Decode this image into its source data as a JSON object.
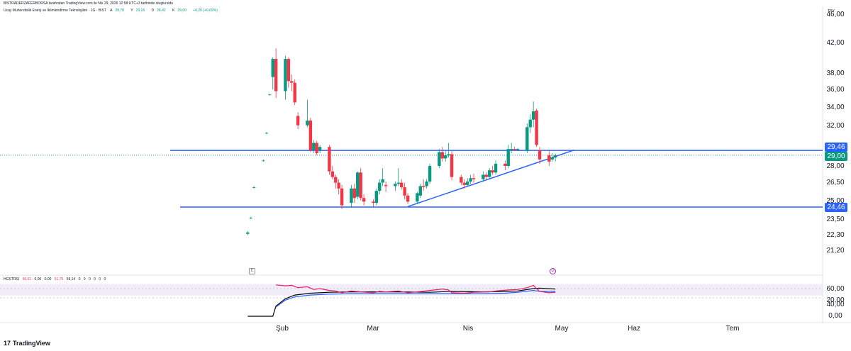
{
  "header": {
    "publish_text": "BISTRADERZAFERBORSA tarafından TradingView.com ile Nis 29, 2026 12:58 UTC+3 tarihinde oluşturuldu",
    "symbol_title": "Ucay Muhendislik Enerji ve Iklimlendirme Teknolojileri · 1G · BIST",
    "ohlc": [
      {
        "label": "A",
        "value": "28,78"
      },
      {
        "label": "Y",
        "value": "29,16"
      },
      {
        "label": "D",
        "value": "28,42"
      },
      {
        "label": "K",
        "value": "29,00"
      },
      {
        "label": "",
        "value": "+0,20 (+0,69%)"
      }
    ],
    "currency": "TRY"
  },
  "indicator": {
    "name": "HGSTRSI",
    "values": [
      "56,61",
      "0,00",
      "0,00",
      "51,75",
      "59,14",
      "0",
      "0",
      "0",
      "0",
      "0",
      "0"
    ]
  },
  "markers": {
    "e_label": "E",
    "d_label": "D"
  },
  "logo": {
    "mark": "17",
    "text": "TradingView"
  },
  "price_axis": {
    "labels": [
      "46,00",
      "42,00",
      "38,00",
      "36,00",
      "34,00",
      "32,00",
      "28,00",
      "26,50",
      "25,00",
      "23,50",
      "22,30",
      "21,20"
    ],
    "badges": [
      {
        "text": "29,46",
        "color": "#2962ff"
      },
      {
        "text": "29,00",
        "color": "#089981"
      },
      {
        "text": "24,46",
        "color": "#2962ff"
      }
    ]
  },
  "rsi_axis": {
    "labels": [
      "60,00",
      "40,00",
      "20,00",
      "0,00"
    ]
  },
  "time_axis": {
    "labels": [
      "Şub",
      "Mar",
      "Nis",
      "May",
      "Haz",
      "Tem"
    ]
  },
  "chart_data": {
    "type": "candlestick",
    "price_scale": "log",
    "ylim": [
      21.2,
      46.0
    ],
    "up_color": "#089981",
    "down_color": "#f23645",
    "horizontal_lines": [
      {
        "value": 29.46,
        "color": "#2962ff"
      },
      {
        "value": 24.46,
        "color": "#2962ff"
      }
    ],
    "last_price": {
      "value": 29.0,
      "color": "#089981"
    },
    "trendline": {
      "from": [
        "2026-03-13",
        24.5
      ],
      "to": [
        "2026-05-05",
        29.5
      ],
      "color": "#2962ff"
    },
    "candles": [
      {
        "d": "2026-01-21",
        "o": 22.4,
        "h": 22.6,
        "l": 22.3,
        "c": 22.5
      },
      {
        "d": "2026-01-22",
        "o": 23.6,
        "h": 23.7,
        "l": 23.5,
        "c": 23.6
      },
      {
        "d": "2026-01-23",
        "o": 26.1,
        "h": 26.2,
        "l": 26.0,
        "c": 26.1
      },
      {
        "d": "2026-01-26",
        "o": 28.5,
        "h": 28.6,
        "l": 28.4,
        "c": 28.5
      },
      {
        "d": "2026-01-27",
        "o": 31.2,
        "h": 31.3,
        "l": 31.1,
        "c": 31.2
      },
      {
        "d": "2026-01-28",
        "o": 35.4,
        "h": 35.5,
        "l": 35.3,
        "c": 35.4
      },
      {
        "d": "2026-01-29",
        "o": 37.5,
        "h": 40.0,
        "l": 36.0,
        "c": 39.8
      },
      {
        "d": "2026-01-30",
        "o": 39.8,
        "h": 41.2,
        "l": 35.0,
        "c": 35.8
      },
      {
        "d": "2026-02-02",
        "o": 35.8,
        "h": 40.2,
        "l": 34.8,
        "c": 39.8
      },
      {
        "d": "2026-02-03",
        "o": 39.8,
        "h": 40.0,
        "l": 36.2,
        "c": 37.0
      },
      {
        "d": "2026-02-04",
        "o": 37.0,
        "h": 37.8,
        "l": 35.8,
        "c": 36.8
      },
      {
        "d": "2026-02-05",
        "o": 36.8,
        "h": 37.2,
        "l": 34.2,
        "c": 34.5
      },
      {
        "d": "2026-02-06",
        "o": 33.0,
        "h": 33.4,
        "l": 31.6,
        "c": 32.0
      },
      {
        "d": "2026-02-09",
        "o": 32.0,
        "h": 34.8,
        "l": 31.8,
        "c": 32.5
      },
      {
        "d": "2026-02-10",
        "o": 32.5,
        "h": 32.8,
        "l": 29.3,
        "c": 29.5
      },
      {
        "d": "2026-02-11",
        "o": 29.5,
        "h": 30.5,
        "l": 29.2,
        "c": 30.2
      },
      {
        "d": "2026-02-12",
        "o": 30.2,
        "h": 30.4,
        "l": 29.0,
        "c": 29.2
      },
      {
        "d": "2026-02-13",
        "o": 29.5,
        "h": 30.0,
        "l": 29.2,
        "c": 29.8
      },
      {
        "d": "2026-02-16",
        "o": 29.8,
        "h": 30.0,
        "l": 27.2,
        "c": 27.5
      },
      {
        "d": "2026-02-17",
        "o": 27.5,
        "h": 28.0,
        "l": 26.8,
        "c": 27.0
      },
      {
        "d": "2026-02-18",
        "o": 27.0,
        "h": 27.2,
        "l": 26.0,
        "c": 26.5
      },
      {
        "d": "2026-02-19",
        "o": 26.5,
        "h": 26.8,
        "l": 25.5,
        "c": 26.0
      },
      {
        "d": "2026-02-20",
        "o": 26.0,
        "h": 26.3,
        "l": 24.3,
        "c": 24.6
      },
      {
        "d": "2026-02-23",
        "o": 24.8,
        "h": 26.3,
        "l": 24.4,
        "c": 26.0
      },
      {
        "d": "2026-02-24",
        "o": 26.0,
        "h": 26.4,
        "l": 24.8,
        "c": 25.2
      },
      {
        "d": "2026-02-25",
        "o": 25.3,
        "h": 27.5,
        "l": 25.1,
        "c": 27.4
      },
      {
        "d": "2026-02-26",
        "o": 27.4,
        "h": 27.8,
        "l": 25.0,
        "c": 25.2
      },
      {
        "d": "2026-02-27",
        "o": 25.2,
        "h": 25.5,
        "l": 24.6,
        "c": 24.9
      },
      {
        "d": "2026-03-02",
        "o": 24.9,
        "h": 25.1,
        "l": 24.5,
        "c": 24.8
      },
      {
        "d": "2026-03-03",
        "o": 24.8,
        "h": 26.0,
        "l": 24.6,
        "c": 25.8
      },
      {
        "d": "2026-03-04",
        "o": 25.8,
        "h": 26.8,
        "l": 25.5,
        "c": 26.5
      },
      {
        "d": "2026-03-05",
        "o": 26.5,
        "h": 27.8,
        "l": 26.2,
        "c": 26.8
      },
      {
        "d": "2026-03-06",
        "o": 26.3,
        "h": 26.6,
        "l": 25.7,
        "c": 26.2
      },
      {
        "d": "2026-03-09",
        "o": 26.2,
        "h": 26.6,
        "l": 25.8,
        "c": 26.4
      },
      {
        "d": "2026-03-10",
        "o": 26.4,
        "h": 27.8,
        "l": 26.2,
        "c": 26.5
      },
      {
        "d": "2026-03-11",
        "o": 26.5,
        "h": 26.8,
        "l": 25.9,
        "c": 26.1
      },
      {
        "d": "2026-03-12",
        "o": 26.1,
        "h": 26.5,
        "l": 25.1,
        "c": 25.4
      },
      {
        "d": "2026-03-13",
        "o": 25.4,
        "h": 25.6,
        "l": 24.7,
        "c": 24.9
      },
      {
        "d": "2026-03-16",
        "o": 24.9,
        "h": 25.7,
        "l": 24.7,
        "c": 25.6
      },
      {
        "d": "2026-03-17",
        "o": 25.4,
        "h": 26.4,
        "l": 25.2,
        "c": 26.2
      },
      {
        "d": "2026-03-18",
        "o": 26.2,
        "h": 26.8,
        "l": 25.8,
        "c": 26.1
      },
      {
        "d": "2026-03-19",
        "o": 26.2,
        "h": 26.8,
        "l": 26.0,
        "c": 26.6
      },
      {
        "d": "2026-03-20",
        "o": 26.6,
        "h": 28.2,
        "l": 26.4,
        "c": 28.0
      },
      {
        "d": "2026-03-23",
        "o": 28.0,
        "h": 29.6,
        "l": 27.8,
        "c": 29.3
      },
      {
        "d": "2026-03-24",
        "o": 29.3,
        "h": 29.8,
        "l": 28.4,
        "c": 28.7
      },
      {
        "d": "2026-03-25",
        "o": 28.7,
        "h": 29.4,
        "l": 28.4,
        "c": 29.0
      },
      {
        "d": "2026-03-26",
        "o": 29.0,
        "h": 30.2,
        "l": 28.8,
        "c": 29.1
      },
      {
        "d": "2026-03-27",
        "o": 29.1,
        "h": 29.4,
        "l": 26.7,
        "c": 27.0
      },
      {
        "d": "2026-03-30",
        "o": 27.0,
        "h": 27.2,
        "l": 26.3,
        "c": 26.5
      },
      {
        "d": "2026-03-31",
        "o": 26.5,
        "h": 26.8,
        "l": 26.0,
        "c": 26.3
      },
      {
        "d": "2026-04-01",
        "o": 26.3,
        "h": 26.9,
        "l": 26.2,
        "c": 26.6
      },
      {
        "d": "2026-04-02",
        "o": 26.6,
        "h": 27.2,
        "l": 26.4,
        "c": 26.9
      },
      {
        "d": "2026-04-03",
        "o": 26.9,
        "h": 27.3,
        "l": 26.5,
        "c": 26.8
      },
      {
        "d": "2026-04-06",
        "o": 26.8,
        "h": 27.5,
        "l": 26.6,
        "c": 27.2
      },
      {
        "d": "2026-04-07",
        "o": 27.2,
        "h": 27.4,
        "l": 26.8,
        "c": 27.0
      },
      {
        "d": "2026-04-08",
        "o": 27.0,
        "h": 27.8,
        "l": 26.9,
        "c": 27.6
      },
      {
        "d": "2026-04-09",
        "o": 27.6,
        "h": 28.0,
        "l": 27.2,
        "c": 27.4
      },
      {
        "d": "2026-04-10",
        "o": 27.4,
        "h": 28.5,
        "l": 27.2,
        "c": 28.2
      },
      {
        "d": "2026-04-13",
        "o": 28.2,
        "h": 28.5,
        "l": 27.6,
        "c": 28.0
      },
      {
        "d": "2026-04-14",
        "o": 28.0,
        "h": 30.0,
        "l": 27.8,
        "c": 29.6
      },
      {
        "d": "2026-04-15",
        "o": 29.5,
        "h": 30.2,
        "l": 29.2,
        "c": 29.6
      },
      {
        "d": "2026-04-16",
        "o": 29.6,
        "h": 29.8,
        "l": 29.4,
        "c": 29.5
      },
      {
        "d": "2026-04-17",
        "o": 29.5,
        "h": 29.7,
        "l": 29.4,
        "c": 29.6
      },
      {
        "d": "2026-04-20",
        "o": 29.4,
        "h": 32.2,
        "l": 29.2,
        "c": 31.8
      },
      {
        "d": "2026-04-21",
        "o": 31.8,
        "h": 33.2,
        "l": 31.2,
        "c": 32.6
      },
      {
        "d": "2026-04-22",
        "o": 32.6,
        "h": 34.6,
        "l": 31.8,
        "c": 33.5
      },
      {
        "d": "2026-04-23",
        "o": 33.6,
        "h": 33.8,
        "l": 29.8,
        "c": 30.0
      },
      {
        "d": "2026-04-24",
        "o": 29.5,
        "h": 29.8,
        "l": 28.2,
        "c": 28.6
      },
      {
        "d": "2026-04-27",
        "o": 29.0,
        "h": 29.4,
        "l": 28.0,
        "c": 28.4
      },
      {
        "d": "2026-04-28",
        "o": 28.6,
        "h": 29.2,
        "l": 28.4,
        "c": 28.8
      },
      {
        "d": "2026-04-29",
        "o": 28.78,
        "h": 29.16,
        "l": 28.42,
        "c": 29.0
      }
    ],
    "rsi": {
      "ylim": [
        0,
        70
      ],
      "band": [
        45,
        70
      ],
      "levels": [
        0,
        20,
        40,
        60
      ],
      "series": [
        {
          "color": "#000000",
          "points": [
            [
              "2026-01-21",
              0
            ],
            [
              "2026-01-29",
              0
            ],
            [
              "2026-01-30",
              22
            ],
            [
              "2026-02-02",
              38
            ],
            [
              "2026-02-05",
              46
            ],
            [
              "2026-02-10",
              50
            ],
            [
              "2026-02-16",
              52
            ],
            [
              "2026-02-23",
              53
            ],
            [
              "2026-03-02",
              53
            ],
            [
              "2026-03-10",
              53
            ],
            [
              "2026-03-20",
              52
            ],
            [
              "2026-03-27",
              54
            ],
            [
              "2026-04-06",
              53
            ],
            [
              "2026-04-13",
              54
            ],
            [
              "2026-04-17",
              55
            ],
            [
              "2026-04-22",
              60
            ],
            [
              "2026-04-24",
              61
            ],
            [
              "2026-04-29",
              59
            ]
          ]
        },
        {
          "color": "#2962ff",
          "points": [
            [
              "2026-01-30",
              20
            ],
            [
              "2026-02-02",
              35
            ],
            [
              "2026-02-05",
              42
            ],
            [
              "2026-02-10",
              46
            ],
            [
              "2026-02-16",
              48
            ],
            [
              "2026-02-23",
              49
            ],
            [
              "2026-03-02",
              49
            ],
            [
              "2026-03-20",
              49
            ],
            [
              "2026-04-06",
              49
            ],
            [
              "2026-04-13",
              50
            ],
            [
              "2026-04-17",
              52
            ],
            [
              "2026-04-22",
              56
            ],
            [
              "2026-04-24",
              54
            ],
            [
              "2026-04-29",
              54
            ]
          ]
        },
        {
          "color": "#e91e63",
          "points": [
            [
              "2026-01-30",
              68
            ],
            [
              "2026-02-02",
              66
            ],
            [
              "2026-02-04",
              67
            ],
            [
              "2026-02-06",
              62
            ],
            [
              "2026-02-09",
              64
            ],
            [
              "2026-02-11",
              58
            ],
            [
              "2026-02-13",
              60
            ],
            [
              "2026-02-16",
              56
            ],
            [
              "2026-02-18",
              55
            ],
            [
              "2026-02-20",
              51
            ],
            [
              "2026-02-23",
              55
            ],
            [
              "2026-02-26",
              53
            ],
            [
              "2026-03-02",
              51
            ],
            [
              "2026-03-04",
              54
            ],
            [
              "2026-03-06",
              53
            ],
            [
              "2026-03-10",
              55
            ],
            [
              "2026-03-13",
              51
            ],
            [
              "2026-03-16",
              53
            ],
            [
              "2026-03-20",
              56
            ],
            [
              "2026-03-24",
              59
            ],
            [
              "2026-03-26",
              57
            ],
            [
              "2026-03-27",
              51
            ],
            [
              "2026-03-31",
              50
            ],
            [
              "2026-04-03",
              52
            ],
            [
              "2026-04-08",
              53
            ],
            [
              "2026-04-10",
              55
            ],
            [
              "2026-04-14",
              57
            ],
            [
              "2026-04-17",
              58
            ],
            [
              "2026-04-20",
              62
            ],
            [
              "2026-04-22",
              67
            ],
            [
              "2026-04-23",
              60
            ],
            [
              "2026-04-24",
              54
            ],
            [
              "2026-04-27",
              51
            ],
            [
              "2026-04-29",
              52
            ]
          ]
        }
      ]
    }
  }
}
